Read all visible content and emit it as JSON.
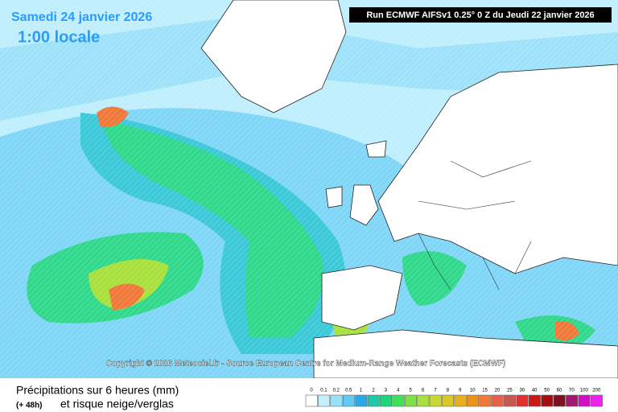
{
  "header": {
    "date": "Samedi 24 janvier 2026",
    "time": "1:00 locale",
    "run": "Run ECMWF AIFSv1 0.25° 0 Z du Jeudi 22 janvier 2026"
  },
  "copyright": "Copyright © 2026 Meteociel.fr - Source European Centre for Medium-Range Weather Forecasts (ECMWF)",
  "footer": {
    "title": "Précipitations sur 6 heures (mm)",
    "lead": "(+ 48h)",
    "subtitle": "et risque neige/verglas"
  },
  "legend": {
    "labels": [
      "0",
      "0.1",
      "0.2",
      "0.5",
      "1",
      "2",
      "3",
      "4",
      "5",
      "6",
      "7",
      "8",
      "9",
      "10",
      "15",
      "20",
      "25",
      "30",
      "40",
      "50",
      "60",
      "70",
      "100",
      "200"
    ],
    "colors": [
      "#ffffff",
      "#c4f0fc",
      "#96e2fa",
      "#5fcaf5",
      "#2aa8ea",
      "#1ec8a8",
      "#1bd67a",
      "#3fe05a",
      "#7fe048",
      "#a8e03c",
      "#c8d830",
      "#d8c828",
      "#e8b020",
      "#f09018",
      "#f07838",
      "#e86048",
      "#c85850",
      "#e03030",
      "#c81818",
      "#a01010",
      "#801020",
      "#a01870",
      "#d010c0",
      "#f020f0"
    ]
  }
}
